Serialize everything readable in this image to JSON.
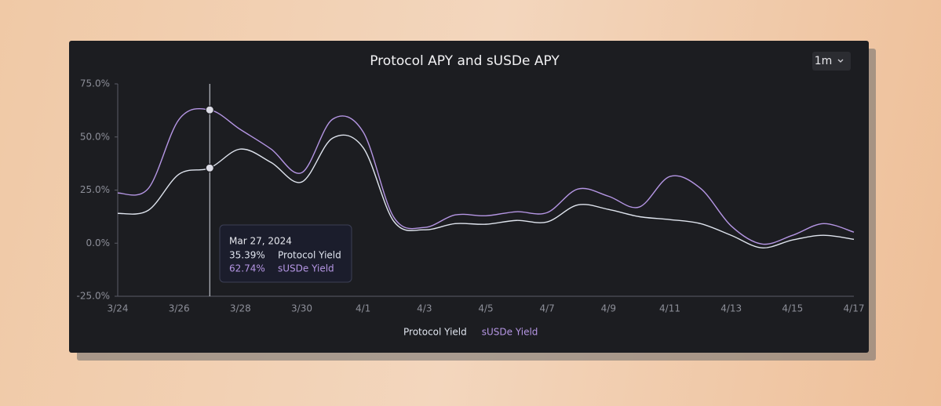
{
  "chart_data": {
    "type": "line",
    "title": "Protocol APY and sUSDe APY",
    "range_button": "1m",
    "categories": [
      "3/24",
      null,
      "3/26",
      null,
      "3/28",
      null,
      "3/30",
      null,
      "4/1",
      null,
      "4/3",
      null,
      "4/5",
      null,
      "4/7",
      null,
      "4/9",
      null,
      "4/11",
      null,
      "4/13",
      null,
      "4/15",
      null,
      "4/17"
    ],
    "series": [
      {
        "name": "Protocol Yield",
        "color": "#dfe4ee",
        "values": [
          14.0,
          15.5,
          32.5,
          35.39,
          44.3,
          38.0,
          28.8,
          49.4,
          45.0,
          10.3,
          6.3,
          9.2,
          8.9,
          10.7,
          10.0,
          18.0,
          15.9,
          12.5,
          11.1,
          9.2,
          3.7,
          -2.2,
          1.5,
          3.7,
          1.8
        ]
      },
      {
        "name": "sUSDe Yield",
        "color": "#b596e4",
        "values": [
          23.6,
          25.8,
          58.3,
          62.74,
          53.5,
          44.3,
          33.2,
          58.3,
          52.4,
          12.2,
          7.4,
          13.3,
          12.9,
          14.8,
          14.4,
          25.5,
          22.1,
          17.0,
          31.4,
          25.8,
          8.1,
          -0.4,
          3.7,
          9.2,
          5.2
        ]
      }
    ],
    "ylim": [
      -25,
      75
    ],
    "yticks": [
      {
        "value": -25,
        "label": "-25.0%"
      },
      {
        "value": 0,
        "label": "0.0%"
      },
      {
        "value": 25,
        "label": "25.0%"
      },
      {
        "value": 50,
        "label": "50.0%"
      },
      {
        "value": 75,
        "label": "75.0%"
      }
    ],
    "tooltip": {
      "index": 3,
      "date": "Mar 27, 2024",
      "value_labels": [
        "35.39%",
        "62.74%"
      ]
    }
  }
}
